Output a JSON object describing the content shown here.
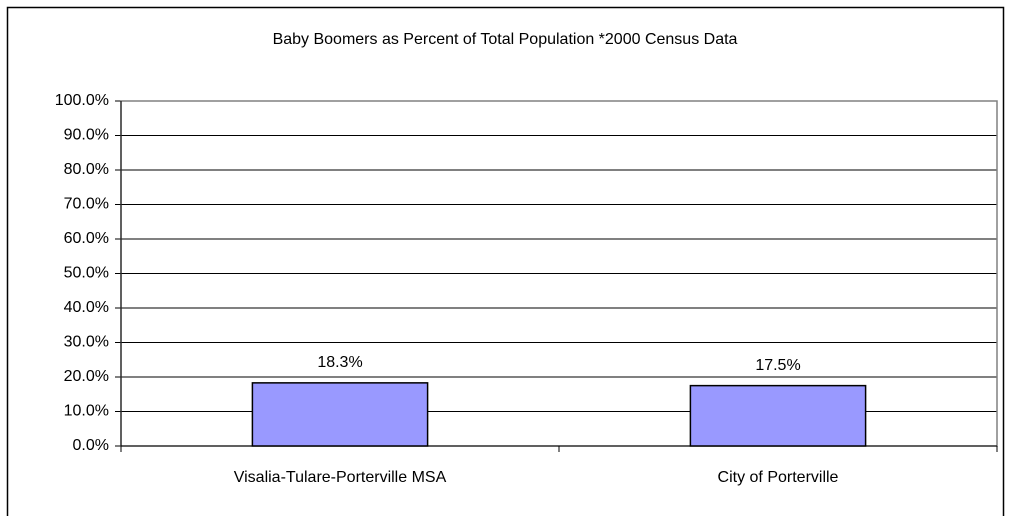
{
  "chart_data": {
    "type": "bar",
    "title": "Baby Boomers as Percent of Total Population *2000 Census Data",
    "categories": [
      "Visalia-Tulare-Porterville MSA",
      "City of Porterville"
    ],
    "values": [
      18.3,
      17.5
    ],
    "value_labels": [
      "18.3%",
      "17.5%"
    ],
    "color": "#9999ff",
    "ylim": [
      0,
      100
    ],
    "yticks": [
      {
        "value": 0,
        "label": "0.0%"
      },
      {
        "value": 10,
        "label": "10.0%"
      },
      {
        "value": 20,
        "label": "20.0%"
      },
      {
        "value": 30,
        "label": "30.0%"
      },
      {
        "value": 40,
        "label": "40.0%"
      },
      {
        "value": 50,
        "label": "50.0%"
      },
      {
        "value": 60,
        "label": "60.0%"
      },
      {
        "value": 70,
        "label": "70.0%"
      },
      {
        "value": 80,
        "label": "80.0%"
      },
      {
        "value": 90,
        "label": "90.0%"
      },
      {
        "value": 100,
        "label": "100.0%"
      }
    ],
    "grid": true
  }
}
